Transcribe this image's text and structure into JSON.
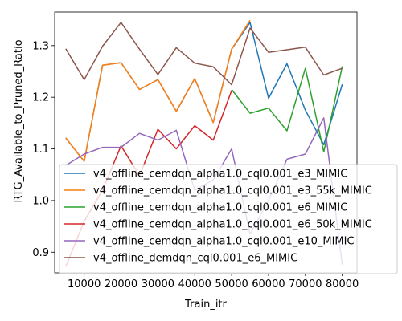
{
  "chart_data": {
    "type": "line",
    "xlabel": "Train_itr",
    "ylabel": "RTG_Available_to_Pruned_Ratio",
    "xlim": [
      2000,
      84000
    ],
    "ylim": [
      0.86,
      1.365
    ],
    "xticks": [
      10000,
      20000,
      30000,
      40000,
      50000,
      60000,
      70000,
      80000
    ],
    "yticks": [
      0.9,
      1.0,
      1.1,
      1.2,
      1.3
    ],
    "ytick_labels": [
      "0.9",
      "1.0",
      "1.1",
      "1.2",
      "1.3"
    ],
    "grid": false,
    "legend_position": "lower-left, overflowing right",
    "x": [
      5000,
      10000,
      15000,
      20000,
      25000,
      30000,
      35000,
      40000,
      45000,
      50000,
      55000,
      60000,
      65000,
      70000,
      75000,
      80000
    ],
    "series": [
      {
        "name": "v4_offline_cemdqn_alpha1.0_cql0.001_e3_MIMIC",
        "color": "#1f77b4",
        "values": [
          1.121,
          1.076,
          1.262,
          1.267,
          1.215,
          1.234,
          1.173,
          1.236,
          1.151,
          1.293,
          1.345,
          1.198,
          1.265,
          1.175,
          1.108,
          1.225
        ]
      },
      {
        "name": "v4_offline_cemdqn_alpha1.0_cql0.001_e3_55k_MIMIC",
        "color": "#ff7f0e",
        "values": [
          1.121,
          1.076,
          1.262,
          1.267,
          1.215,
          1.234,
          1.173,
          1.236,
          1.151,
          1.293,
          1.349,
          null,
          null,
          null,
          null,
          null
        ]
      },
      {
        "name": "v4_offline_cemdqn_alpha1.0_cql0.001_e6_MIMIC",
        "color": "#2ca02c",
        "values": [
          null,
          null,
          null,
          null,
          null,
          null,
          null,
          null,
          null,
          1.215,
          1.169,
          1.179,
          1.135,
          1.256,
          1.094,
          1.26
        ]
      },
      {
        "name": "v4_offline_cemdqn_alpha1.0_cql0.001_e6_50k_MIMIC",
        "color": "#d62728",
        "values": [
          0.872,
          0.96,
          1.02,
          1.106,
          1.048,
          1.138,
          1.1,
          1.145,
          1.117,
          1.213,
          null,
          null,
          null,
          null,
          null,
          null
        ]
      },
      {
        "name": "v4_offline_cemdqn_alpha1.0_cql0.001_e10_MIMIC",
        "color": "#9467bd",
        "values": [
          1.068,
          1.09,
          1.103,
          1.103,
          1.13,
          1.117,
          1.136,
          1.02,
          1.04,
          1.1,
          0.935,
          1.0,
          1.08,
          1.09,
          1.16,
          0.876
        ]
      },
      {
        "name": "v4_offline_demdqn_cql0.001_e6_MIMIC",
        "color": "#8c564b",
        "values": [
          1.294,
          1.234,
          1.299,
          1.345,
          1.293,
          1.244,
          1.296,
          1.266,
          1.259,
          1.224,
          1.334,
          1.287,
          1.292,
          1.297,
          1.243,
          1.256
        ]
      }
    ]
  }
}
